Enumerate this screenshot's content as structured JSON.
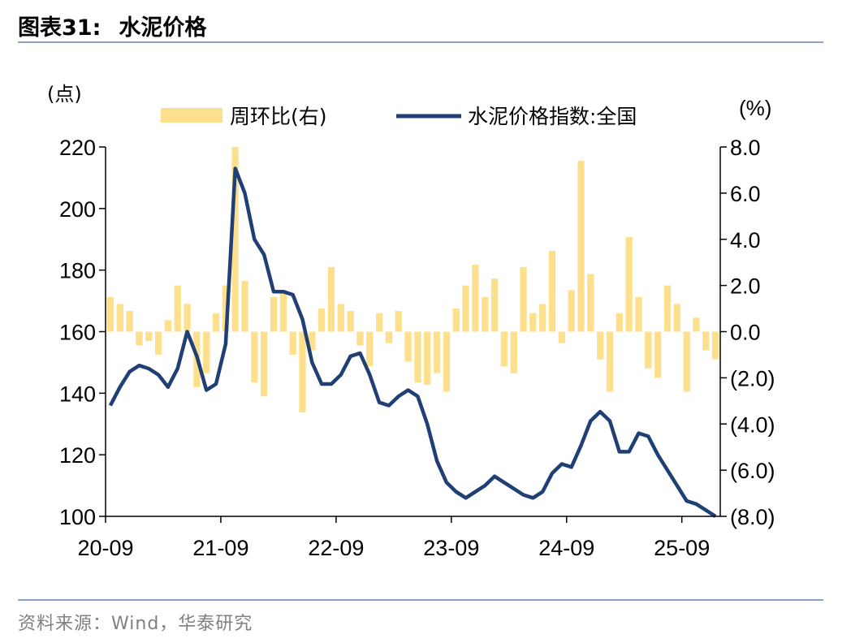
{
  "header": {
    "figure_no": "图表31:",
    "title": "水泥价格"
  },
  "footer": {
    "source": "资料来源：Wind，华泰研究"
  },
  "chart_data": {
    "type": "bar+line",
    "left_unit": "(点)",
    "right_unit": "(%)",
    "legend": {
      "bar_label": "周环比(右)",
      "line_label": "水泥价格指数:全国",
      "placement": "top"
    },
    "colors": {
      "bar": "#fde08d",
      "line": "#1f3f75",
      "axis": "#000000"
    },
    "x_ticks": [
      "20-09",
      "21-09",
      "22-09",
      "23-09",
      "24-09",
      "25-09"
    ],
    "x_range": [
      "2020-09",
      "2025-12"
    ],
    "left_axis": {
      "ylim": [
        100,
        220
      ],
      "ticks": [
        "100",
        "120",
        "140",
        "160",
        "180",
        "200",
        "220"
      ]
    },
    "right_axis": {
      "ylim": [
        -8,
        8
      ],
      "ticks": [
        "(8.0)",
        "(6.0)",
        "(4.0)",
        "(2.0)",
        "0.0",
        "2.0",
        "4.0",
        "6.0",
        "8.0"
      ]
    },
    "grid": false,
    "series": [
      {
        "name": "水泥价格指数:全国",
        "kind": "line",
        "axis": "left",
        "points": [
          [
            "2020-09",
            136
          ],
          [
            "2020-10",
            142
          ],
          [
            "2020-11",
            147
          ],
          [
            "2020-12",
            149
          ],
          [
            "2021-01",
            148
          ],
          [
            "2021-02",
            146
          ],
          [
            "2021-03",
            142
          ],
          [
            "2021-04",
            148
          ],
          [
            "2021-05",
            160
          ],
          [
            "2021-06",
            152
          ],
          [
            "2021-07",
            141
          ],
          [
            "2021-08",
            143
          ],
          [
            "2021-09",
            156
          ],
          [
            "2021-10",
            213
          ],
          [
            "2021-11",
            205
          ],
          [
            "2021-12",
            190
          ],
          [
            "2022-01",
            185
          ],
          [
            "2022-02",
            173
          ],
          [
            "2022-03",
            173
          ],
          [
            "2022-04",
            172
          ],
          [
            "2022-05",
            164
          ],
          [
            "2022-06",
            150
          ],
          [
            "2022-07",
            143
          ],
          [
            "2022-08",
            143
          ],
          [
            "2022-09",
            146
          ],
          [
            "2022-10",
            152
          ],
          [
            "2022-11",
            153
          ],
          [
            "2022-12",
            146
          ],
          [
            "2023-01",
            137
          ],
          [
            "2023-02",
            136
          ],
          [
            "2023-03",
            139
          ],
          [
            "2023-04",
            141
          ],
          [
            "2023-05",
            139
          ],
          [
            "2023-06",
            130
          ],
          [
            "2023-07",
            118
          ],
          [
            "2023-08",
            111
          ],
          [
            "2023-09",
            108
          ],
          [
            "2023-10",
            106
          ],
          [
            "2023-11",
            108
          ],
          [
            "2023-12",
            110
          ],
          [
            "2024-01",
            113
          ],
          [
            "2024-02",
            111
          ],
          [
            "2024-03",
            109
          ],
          [
            "2024-04",
            107
          ],
          [
            "2024-05",
            106
          ],
          [
            "2024-06",
            108
          ],
          [
            "2024-07",
            114
          ],
          [
            "2024-08",
            117
          ],
          [
            "2024-09",
            116
          ],
          [
            "2024-10",
            123
          ],
          [
            "2024-11",
            131
          ],
          [
            "2024-12",
            134
          ],
          [
            "2025-01",
            131
          ],
          [
            "2025-02",
            121
          ],
          [
            "2025-03",
            121
          ],
          [
            "2025-04",
            127
          ],
          [
            "2025-05",
            126
          ],
          [
            "2025-06",
            120
          ],
          [
            "2025-07",
            115
          ],
          [
            "2025-08",
            110
          ],
          [
            "2025-09",
            105
          ],
          [
            "2025-10",
            104
          ],
          [
            "2025-11",
            102
          ],
          [
            "2025-12",
            100
          ]
        ]
      },
      {
        "name": "周环比",
        "kind": "bar",
        "axis": "right",
        "points": [
          [
            "2020-09",
            1.5
          ],
          [
            "2020-10",
            1.2
          ],
          [
            "2020-11",
            0.9
          ],
          [
            "2020-12",
            -0.6
          ],
          [
            "2021-01",
            -0.4
          ],
          [
            "2021-02",
            -1.0
          ],
          [
            "2021-03",
            0.5
          ],
          [
            "2021-04",
            2.0
          ],
          [
            "2021-05",
            1.2
          ],
          [
            "2021-06",
            -2.4
          ],
          [
            "2021-07",
            -1.8
          ],
          [
            "2021-08",
            0.8
          ],
          [
            "2021-09",
            2.0
          ],
          [
            "2021-10",
            8.0
          ],
          [
            "2021-11",
            2.2
          ],
          [
            "2021-12",
            -2.2
          ],
          [
            "2022-01",
            -2.8
          ],
          [
            "2022-02",
            1.5
          ],
          [
            "2022-03",
            1.8
          ],
          [
            "2022-04",
            -1.0
          ],
          [
            "2022-05",
            -3.5
          ],
          [
            "2022-06",
            -0.8
          ],
          [
            "2022-07",
            1.0
          ],
          [
            "2022-08",
            2.8
          ],
          [
            "2022-09",
            1.2
          ],
          [
            "2022-10",
            0.9
          ],
          [
            "2022-11",
            -0.6
          ],
          [
            "2022-12",
            -1.5
          ],
          [
            "2023-01",
            0.8
          ],
          [
            "2023-02",
            -0.5
          ],
          [
            "2023-03",
            0.9
          ],
          [
            "2023-04",
            -1.3
          ],
          [
            "2023-05",
            -2.2
          ],
          [
            "2023-06",
            -2.3
          ],
          [
            "2023-07",
            -1.8
          ],
          [
            "2023-08",
            -2.6
          ],
          [
            "2023-09",
            1.0
          ],
          [
            "2023-10",
            2.0
          ],
          [
            "2023-11",
            2.9
          ],
          [
            "2023-12",
            1.5
          ],
          [
            "2024-01",
            2.3
          ],
          [
            "2024-02",
            -1.5
          ],
          [
            "2024-03",
            -1.8
          ],
          [
            "2024-04",
            2.8
          ],
          [
            "2024-05",
            0.8
          ],
          [
            "2024-06",
            1.2
          ],
          [
            "2024-07",
            3.5
          ],
          [
            "2024-08",
            -0.5
          ],
          [
            "2024-09",
            1.8
          ],
          [
            "2024-10",
            7.4
          ],
          [
            "2024-11",
            2.5
          ],
          [
            "2024-12",
            -1.2
          ],
          [
            "2025-01",
            -2.6
          ],
          [
            "2025-02",
            0.8
          ],
          [
            "2025-03",
            4.1
          ],
          [
            "2025-04",
            1.5
          ],
          [
            "2025-05",
            -1.6
          ],
          [
            "2025-06",
            -2.0
          ],
          [
            "2025-07",
            2.0
          ],
          [
            "2025-08",
            1.2
          ],
          [
            "2025-09",
            -2.6
          ],
          [
            "2025-10",
            0.6
          ],
          [
            "2025-11",
            -0.8
          ],
          [
            "2025-12",
            -1.2
          ]
        ]
      }
    ]
  }
}
